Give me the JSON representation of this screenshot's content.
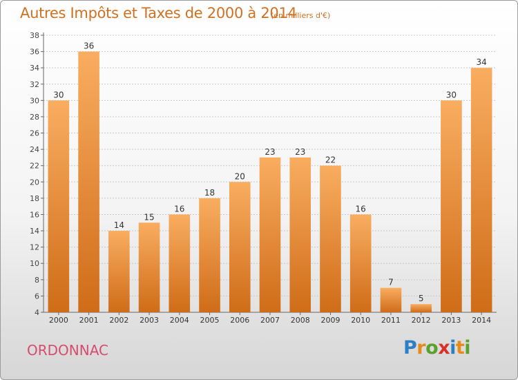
{
  "header": {
    "title": "Autres Impôts et Taxes de 2000 à 2014",
    "subtitle": "(en milliers d'€)"
  },
  "footer": {
    "location": "ORDONNAC",
    "logo_text": "Proxiti"
  },
  "colors": {
    "bar_light": "#f7a85a",
    "bar_dark": "#d06f1a",
    "title": "#d07020",
    "location": "#d64c6e"
  },
  "chart_data": {
    "type": "bar",
    "title": "Autres Impôts et Taxes de 2000 à 2014",
    "subtitle": "(en milliers d'€)",
    "xlabel": "",
    "ylabel": "",
    "categories": [
      "2000",
      "2001",
      "2002",
      "2003",
      "2004",
      "2005",
      "2006",
      "2007",
      "2008",
      "2009",
      "2010",
      "2011",
      "2012",
      "2013",
      "2014"
    ],
    "values": [
      30,
      36,
      14,
      15,
      16,
      18,
      20,
      23,
      23,
      22,
      16,
      7,
      5,
      30,
      34
    ],
    "ylim": [
      4,
      38
    ],
    "yticks": [
      4,
      6,
      8,
      10,
      12,
      14,
      16,
      18,
      20,
      22,
      24,
      26,
      28,
      30,
      32,
      34,
      36,
      38
    ],
    "grid": true,
    "data_labels": true
  }
}
